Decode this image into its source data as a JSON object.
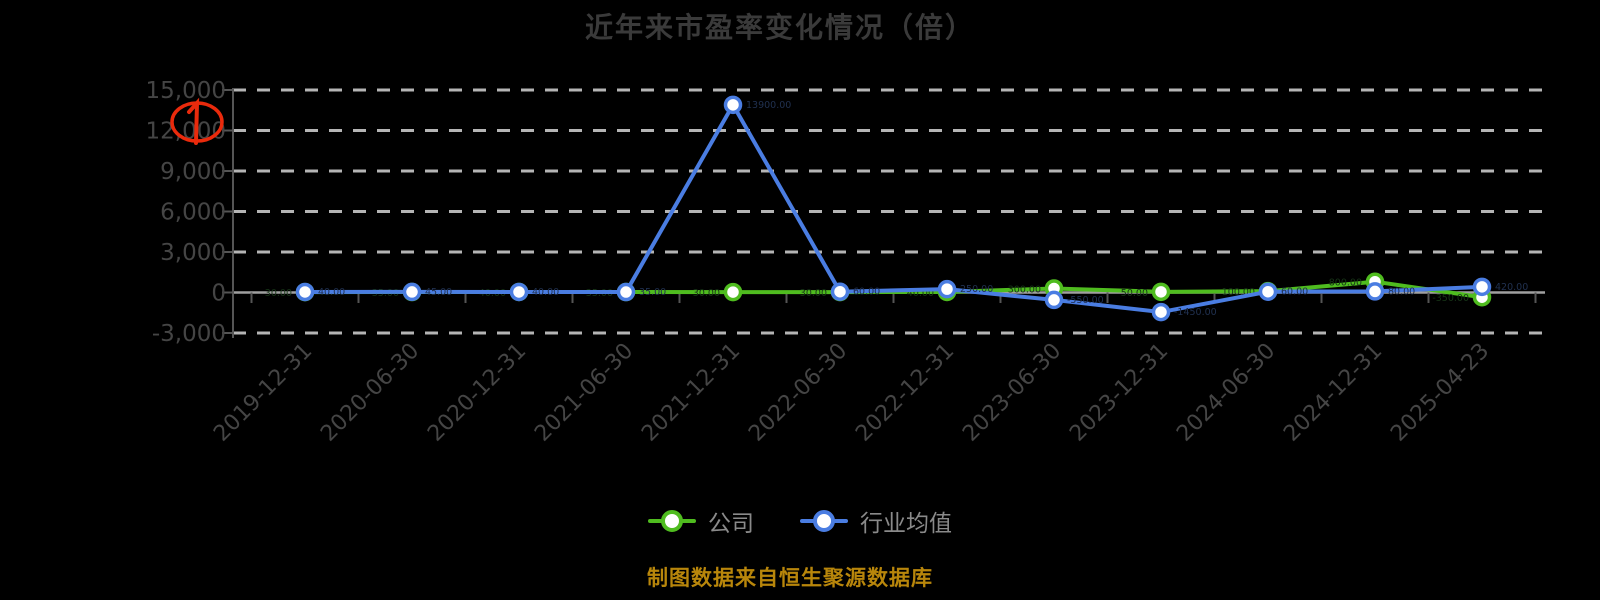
{
  "title": "近年来市盈率变化情况（倍）",
  "source_note": "制图数据来自恒生聚源数据库",
  "annotation": {
    "type": "hand-drawn-mark",
    "color": "#ea2a0c",
    "location": "over the 12,000 y-axis label",
    "shape": "rough circle with vertical stroke"
  },
  "legend": {
    "position": "bottom-center",
    "items": [
      {
        "label": "公司",
        "color": "#4fbc1f"
      },
      {
        "label": "行业均值",
        "color": "#4a7de2"
      }
    ]
  },
  "colors": {
    "background": "#000000",
    "title_text": "#3a3a3a",
    "axis_text": "#454545",
    "axis_line": "#555555",
    "legend_text": "#8a8a8a",
    "gridline": "#b5b5b5",
    "zero_axis": "#a0a0a0",
    "source_text": "#b8860b",
    "company_series": "#4fbc1f",
    "industry_series": "#4a7de2"
  },
  "chart_data": {
    "type": "line",
    "title": "近年来市盈率变化情况（倍）",
    "categories": [
      "2019-12-31",
      "2020-06-30",
      "2020-12-31",
      "2021-06-30",
      "2021-12-31",
      "2022-06-30",
      "2022-12-31",
      "2023-06-30",
      "2023-12-31",
      "2024-06-30",
      "2024-12-31",
      "2025-04-23"
    ],
    "series": [
      {
        "name": "公司",
        "color": "#4fbc1f",
        "values": [
          30,
          35,
          40,
          35,
          30,
          30,
          40,
          300,
          50,
          100,
          800,
          -350
        ]
      },
      {
        "name": "行业均值",
        "color": "#4a7de2",
        "values": [
          40,
          45,
          40,
          35,
          13900,
          60,
          250,
          -550,
          -1450,
          60,
          80,
          420
        ]
      }
    ],
    "ylim": [
      -3000,
      15000
    ],
    "yticks": [
      15000,
      12000,
      9000,
      6000,
      3000,
      0,
      -3000
    ],
    "ytick_labels": [
      "15,000",
      "12,000",
      "9,000",
      "6,000",
      "3,000",
      "0",
      "-3,000"
    ],
    "xlabel": "",
    "ylabel": "",
    "grid": "horizontal-dashed",
    "legend_position": "bottom",
    "marker": "circle-white-fill",
    "note": "series values estimated from plotted positions; tiny dark per-point value labels in the image are illegible"
  }
}
